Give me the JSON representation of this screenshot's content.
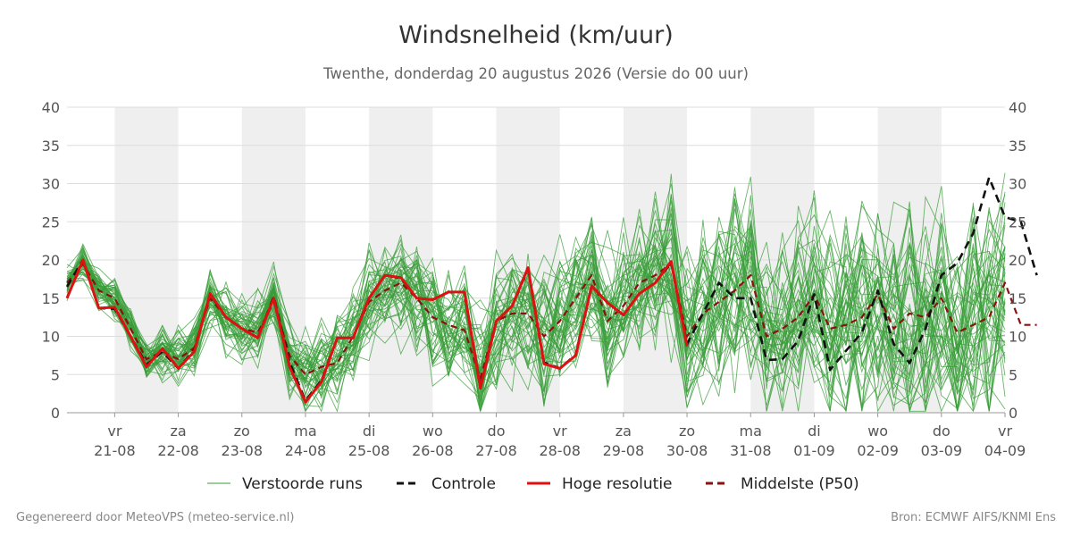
{
  "footer": {
    "generated": "Gegenereerd door MeteoVPS (meteo-service.nl)",
    "source": "Bron: ECMWF AIFS/KNMI Ens"
  },
  "chart_data": {
    "type": "line",
    "title": "Windsnelheid (km/uur)",
    "subtitle": "Twenthe, donderdag 20 augustus 2026 (Versie do 00 uur)",
    "ylim": [
      0,
      40
    ],
    "yticks": [
      0,
      5,
      10,
      15,
      20,
      25,
      30,
      35,
      40
    ],
    "x_range_days": [
      -0.75,
      14
    ],
    "grid": true,
    "legend_position": "bottom",
    "x_ticks": [
      {
        "day": "vr",
        "date": "21-08"
      },
      {
        "day": "za",
        "date": "22-08"
      },
      {
        "day": "zo",
        "date": "23-08"
      },
      {
        "day": "ma",
        "date": "24-08"
      },
      {
        "day": "di",
        "date": "25-08"
      },
      {
        "day": "wo",
        "date": "26-08"
      },
      {
        "day": "do",
        "date": "27-08"
      },
      {
        "day": "vr",
        "date": "28-08"
      },
      {
        "day": "za",
        "date": "29-08"
      },
      {
        "day": "zo",
        "date": "30-08"
      },
      {
        "day": "ma",
        "date": "31-08"
      },
      {
        "day": "di",
        "date": "01-09"
      },
      {
        "day": "wo",
        "date": "02-09"
      },
      {
        "day": "do",
        "date": "03-09"
      },
      {
        "day": "vr",
        "date": "04-09"
      }
    ],
    "shaded_days": [
      "21-08",
      "23-08",
      "25-08",
      "27-08",
      "29-08",
      "31-08",
      "02-09"
    ],
    "legend": [
      {
        "label": "Verstoorde runs",
        "color": "#3a9e3a",
        "style": "thin"
      },
      {
        "label": "Controle",
        "color": "#111111",
        "style": "dashed"
      },
      {
        "label": "Hoge resolutie",
        "color": "#dd1111",
        "style": "solid"
      },
      {
        "label": "Middelste (P50)",
        "color": "#8b1010",
        "style": "dashed"
      }
    ],
    "series": [
      {
        "name": "Hoge resolutie",
        "color": "#dd1111",
        "points": [
          [
            -0.75,
            15
          ],
          [
            -0.5,
            20
          ],
          [
            -0.25,
            13.7
          ],
          [
            0,
            13.8
          ],
          [
            0.25,
            10
          ],
          [
            0.5,
            6
          ],
          [
            0.75,
            8.4
          ],
          [
            1,
            5.8
          ],
          [
            1.25,
            8
          ],
          [
            1.5,
            15.6
          ],
          [
            1.75,
            12.5
          ],
          [
            2,
            11
          ],
          [
            2.25,
            9.8
          ],
          [
            2.5,
            15
          ],
          [
            2.75,
            6
          ],
          [
            3,
            1.4
          ],
          [
            3.25,
            4
          ],
          [
            3.5,
            9.8
          ],
          [
            3.75,
            9.8
          ],
          [
            4,
            15
          ],
          [
            4.25,
            18
          ],
          [
            4.5,
            17.7
          ],
          [
            4.75,
            15
          ],
          [
            5,
            14.8
          ],
          [
            5.25,
            15.8
          ],
          [
            5.5,
            15.8
          ],
          [
            5.75,
            3.2
          ],
          [
            6,
            12
          ],
          [
            6.25,
            14
          ],
          [
            6.5,
            19
          ],
          [
            6.75,
            6.4
          ],
          [
            7,
            5.8
          ],
          [
            7.25,
            7.5
          ],
          [
            7.5,
            16.6
          ],
          [
            7.75,
            14.4
          ],
          [
            8,
            12.8
          ],
          [
            8.25,
            15.6
          ],
          [
            8.5,
            17
          ],
          [
            8.75,
            19.8
          ],
          [
            9,
            8.7
          ]
        ]
      },
      {
        "name": "Controle",
        "color": "#111111",
        "points": [
          [
            -0.75,
            16.5
          ],
          [
            -0.5,
            20
          ],
          [
            -0.25,
            13.7
          ],
          [
            0,
            13.6
          ],
          [
            0.25,
            10
          ],
          [
            0.5,
            6.3
          ],
          [
            0.75,
            8
          ],
          [
            1,
            5.8
          ],
          [
            1.25,
            8.2
          ],
          [
            1.5,
            15.5
          ],
          [
            1.75,
            12.5
          ],
          [
            2,
            11
          ],
          [
            2.25,
            9.8
          ],
          [
            2.5,
            15.2
          ],
          [
            2.75,
            6.6
          ],
          [
            3,
            1.6
          ],
          [
            3.25,
            4.2
          ],
          [
            3.5,
            9.8
          ],
          [
            3.75,
            9.8
          ],
          [
            4,
            15
          ],
          [
            4.25,
            18
          ],
          [
            4.5,
            17.6
          ],
          [
            4.75,
            15
          ],
          [
            5,
            14.8
          ],
          [
            5.25,
            15.8
          ],
          [
            5.5,
            15.8
          ],
          [
            5.75,
            3.4
          ],
          [
            6,
            12
          ],
          [
            6.25,
            14
          ],
          [
            6.5,
            18.8
          ],
          [
            6.75,
            6.6
          ],
          [
            7,
            5.8
          ],
          [
            7.25,
            7.6
          ],
          [
            7.5,
            16.6
          ],
          [
            7.75,
            14.4
          ],
          [
            8,
            12.8
          ],
          [
            8.25,
            15.6
          ],
          [
            8.5,
            17
          ],
          [
            8.75,
            19.6
          ],
          [
            9,
            9
          ],
          [
            9.5,
            17
          ],
          [
            9.75,
            15
          ],
          [
            10,
            15
          ],
          [
            10.25,
            6.9
          ],
          [
            10.5,
            7
          ],
          [
            10.75,
            9.4
          ],
          [
            11,
            15.5
          ],
          [
            11.25,
            5.6
          ],
          [
            11.5,
            8.1
          ],
          [
            11.75,
            10.5
          ],
          [
            12,
            16
          ],
          [
            12.25,
            9
          ],
          [
            12.5,
            6.5
          ],
          [
            12.75,
            11
          ],
          [
            13,
            18
          ],
          [
            13.25,
            19.6
          ],
          [
            13.5,
            23.5
          ],
          [
            13.75,
            30.8
          ],
          [
            14,
            25.6
          ],
          [
            14.25,
            25
          ],
          [
            14.5,
            18
          ]
        ]
      },
      {
        "name": "Middelste (P50)",
        "color": "#8b1010",
        "points": [
          [
            -0.75,
            17
          ],
          [
            -0.5,
            19.5
          ],
          [
            -0.25,
            16
          ],
          [
            0,
            15
          ],
          [
            0.25,
            11
          ],
          [
            0.5,
            7
          ],
          [
            0.75,
            8
          ],
          [
            1,
            7
          ],
          [
            1.25,
            8.5
          ],
          [
            1.5,
            15
          ],
          [
            1.75,
            12.5
          ],
          [
            2,
            11
          ],
          [
            2.25,
            10.5
          ],
          [
            2.5,
            14.5
          ],
          [
            2.75,
            7.5
          ],
          [
            3,
            5
          ],
          [
            3.25,
            6
          ],
          [
            3.5,
            6.5
          ],
          [
            3.75,
            10
          ],
          [
            4,
            14.5
          ],
          [
            4.25,
            16
          ],
          [
            4.5,
            17
          ],
          [
            4.75,
            15
          ],
          [
            5,
            12.5
          ],
          [
            5.25,
            11.5
          ],
          [
            5.5,
            10.8
          ],
          [
            5.75,
            4.5
          ],
          [
            6,
            12
          ],
          [
            6.25,
            13
          ],
          [
            6.5,
            13
          ],
          [
            6.75,
            10
          ],
          [
            7,
            12
          ],
          [
            7.25,
            15
          ],
          [
            7.5,
            18
          ],
          [
            7.75,
            12
          ],
          [
            8,
            14
          ],
          [
            8.25,
            17
          ],
          [
            8.5,
            18
          ],
          [
            8.75,
            19.5
          ],
          [
            9,
            10
          ],
          [
            9.25,
            13
          ],
          [
            9.5,
            14.5
          ],
          [
            9.75,
            16
          ],
          [
            10,
            18
          ],
          [
            10.25,
            10
          ],
          [
            10.5,
            11
          ],
          [
            10.75,
            12.5
          ],
          [
            11,
            15.5
          ],
          [
            11.25,
            11
          ],
          [
            11.5,
            11.5
          ],
          [
            11.75,
            12.5
          ],
          [
            12,
            15.5
          ],
          [
            12.25,
            11
          ],
          [
            12.5,
            13
          ],
          [
            12.75,
            12.5
          ],
          [
            13,
            15
          ],
          [
            13.25,
            10.5
          ],
          [
            13.5,
            11.5
          ],
          [
            13.75,
            12.5
          ],
          [
            14,
            17
          ],
          [
            14.25,
            11.5
          ],
          [
            14.5,
            11.5
          ]
        ]
      }
    ]
  }
}
